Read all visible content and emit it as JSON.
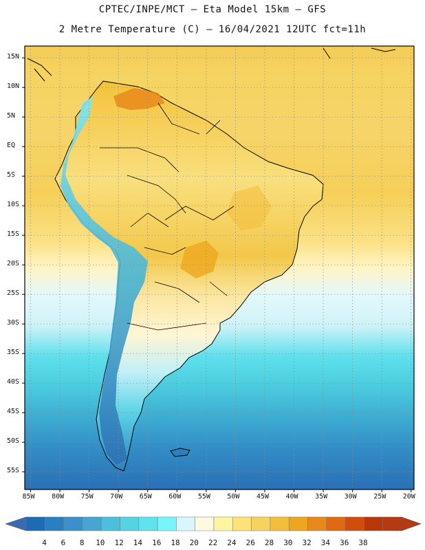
{
  "title": {
    "line1": "CPTEC/INPE/MCT –  Eta Model 15km – GFS",
    "line2": "2 Metre Temperature (C) – 16/04/2021 12UTC fct=11h"
  },
  "map": {
    "lon_range": [
      -86,
      -19.5
    ],
    "lat_range": [
      -58,
      17
    ],
    "lat_ticks": [
      {
        "value": 15,
        "label": "15N"
      },
      {
        "value": 10,
        "label": "10N"
      },
      {
        "value": 5,
        "label": "5N"
      },
      {
        "value": 0,
        "label": "EQ"
      },
      {
        "value": -5,
        "label": "5S"
      },
      {
        "value": -10,
        "label": "10S"
      },
      {
        "value": -15,
        "label": "15S"
      },
      {
        "value": -20,
        "label": "20S"
      },
      {
        "value": -25,
        "label": "25S"
      },
      {
        "value": -30,
        "label": "30S"
      },
      {
        "value": -35,
        "label": "35S"
      },
      {
        "value": -40,
        "label": "40S"
      },
      {
        "value": -45,
        "label": "45S"
      },
      {
        "value": -50,
        "label": "50S"
      },
      {
        "value": -55,
        "label": "55S"
      }
    ],
    "lon_ticks": [
      {
        "value": -85,
        "label": "85W"
      },
      {
        "value": -80,
        "label": "80W"
      },
      {
        "value": -75,
        "label": "75W"
      },
      {
        "value": -70,
        "label": "70W"
      },
      {
        "value": -65,
        "label": "65W"
      },
      {
        "value": -60,
        "label": "60W"
      },
      {
        "value": -55,
        "label": "55W"
      },
      {
        "value": -50,
        "label": "50W"
      },
      {
        "value": -45,
        "label": "45W"
      },
      {
        "value": -40,
        "label": "40W"
      },
      {
        "value": -35,
        "label": "35W"
      },
      {
        "value": -30,
        "label": "30W"
      },
      {
        "value": -25,
        "label": "25W"
      },
      {
        "value": -20,
        "label": "20W"
      }
    ]
  },
  "colorbar": {
    "labels": [
      "4",
      "6",
      "8",
      "10",
      "12",
      "14",
      "16",
      "18",
      "20",
      "22",
      "24",
      "26",
      "28",
      "30",
      "32",
      "34",
      "36",
      "38"
    ],
    "colors": [
      "#1e6bb5",
      "#2a7fc0",
      "#3a90c8",
      "#47a6cf",
      "#4bbfdc",
      "#55d2e4",
      "#5fe4ee",
      "#78f5f8",
      "#d8f6fb",
      "#fff8e2",
      "#fff4a0",
      "#fde27a",
      "#f7d25e",
      "#f1bf3c",
      "#eda71e",
      "#e88a1b",
      "#e06a12",
      "#d24c0c",
      "#b8380a",
      "#b53a12"
    ],
    "low_color": "#3a6bb0",
    "high_color": "#b53a12"
  }
}
